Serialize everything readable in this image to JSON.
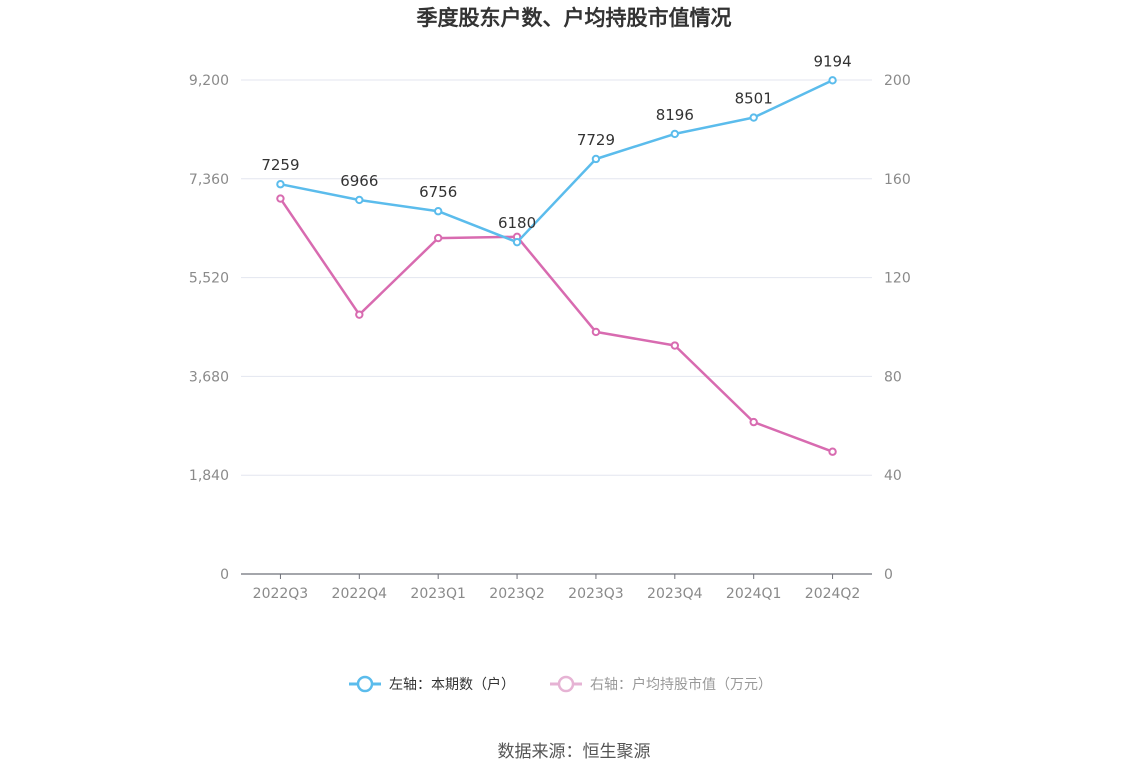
{
  "chart_data": {
    "type": "line",
    "title": "季度股东户数、户均持股市值情况",
    "categories": [
      "2022Q3",
      "2022Q4",
      "2023Q1",
      "2023Q2",
      "2023Q3",
      "2023Q4",
      "2024Q1",
      "2024Q2"
    ],
    "series": [
      {
        "name": "左轴：本期数（户）",
        "axis": "left",
        "color": "#5bbcec",
        "values": [
          7259,
          6966,
          6756,
          6180,
          7729,
          8196,
          8501,
          9194
        ],
        "data_labels": [
          "7259",
          "6966",
          "6756",
          "6180",
          "7729",
          "8196",
          "8501",
          "9194"
        ]
      },
      {
        "name": "右轴：户均持股市值（万元）",
        "axis": "right",
        "color": "#d86bb0",
        "values": [
          152,
          105,
          136,
          136.5,
          98,
          92.5,
          61.5,
          49.5
        ]
      }
    ],
    "y_left": {
      "min": 0,
      "max": 9200,
      "ticks": [
        "0",
        "1,840",
        "3,680",
        "5,520",
        "7,360",
        "9,200"
      ]
    },
    "y_right": {
      "min": 0,
      "max": 200,
      "ticks": [
        "0",
        "40",
        "80",
        "120",
        "160",
        "200"
      ]
    },
    "grid": true,
    "legend_position": "bottom"
  },
  "source_text": "数据来源：恒生聚源"
}
